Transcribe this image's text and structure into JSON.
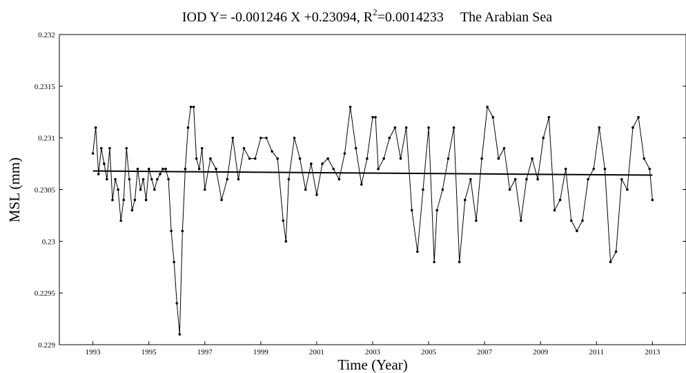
{
  "chart_data": {
    "type": "line",
    "title": {
      "prefix": "IOD Y= -0.001246 X +0.23094, R",
      "superscript": "2",
      "suffix": "=0.0014233",
      "region": "The Arabian Sea"
    },
    "xlabel": "Time (Year)",
    "ylabel": "MSL (mm)",
    "xlim": [
      1991.8,
      2014.2
    ],
    "ylim": [
      0.229,
      0.232
    ],
    "x_ticks": [
      1993,
      1995,
      1997,
      1999,
      2001,
      2003,
      2005,
      2007,
      2009,
      2011,
      2013
    ],
    "y_ticks": [
      {
        "value": 0.229,
        "label": "0.229"
      },
      {
        "value": 0.2295,
        "label": "0.2295"
      },
      {
        "value": 0.23,
        "label": "0.23"
      },
      {
        "value": 0.2305,
        "label": "0.2305"
      },
      {
        "value": 0.231,
        "label": "0.231"
      },
      {
        "value": 0.2315,
        "label": "0.2315"
      },
      {
        "value": 0.232,
        "label": "0.232"
      }
    ],
    "grid": false,
    "legend": "none",
    "line_color": "#000000",
    "marker": "dot",
    "series": [
      {
        "x": [
          1993.0,
          1993.1,
          1993.2,
          1993.3,
          1993.4,
          1993.5,
          1993.6,
          1993.7,
          1993.8,
          1993.9,
          1994.0,
          1994.1,
          1994.2,
          1994.3,
          1994.4,
          1994.5,
          1994.6,
          1994.7,
          1994.8,
          1994.9,
          1995.0,
          1995.1,
          1995.2,
          1995.3,
          1995.4,
          1995.5,
          1995.6,
          1995.7,
          1995.8,
          1995.9,
          1996.0,
          1996.1,
          1996.2,
          1996.3,
          1996.4,
          1996.5,
          1996.6,
          1996.7,
          1996.8,
          1996.9,
          1997.0,
          1997.2,
          1997.4,
          1997.6,
          1997.8,
          1998.0,
          1998.2,
          1998.4,
          1998.6,
          1998.8,
          1999.0,
          1999.2,
          1999.4,
          1999.6,
          1999.8,
          1999.9,
          2000.0,
          2000.2,
          2000.4,
          2000.6,
          2000.8,
          2001.0,
          2001.2,
          2001.4,
          2001.6,
          2001.8,
          2002.0,
          2002.2,
          2002.4,
          2002.6,
          2002.8,
          2003.0,
          2003.1,
          2003.2,
          2003.4,
          2003.6,
          2003.8,
          2004.0,
          2004.2,
          2004.4,
          2004.6,
          2004.8,
          2005.0,
          2005.2,
          2005.3,
          2005.5,
          2005.7,
          2005.9,
          2006.1,
          2006.3,
          2006.5,
          2006.7,
          2006.9,
          2007.1,
          2007.3,
          2007.5,
          2007.7,
          2007.9,
          2008.1,
          2008.3,
          2008.5,
          2008.7,
          2008.9,
          2009.1,
          2009.3,
          2009.5,
          2009.7,
          2009.9,
          2010.1,
          2010.3,
          2010.5,
          2010.7,
          2010.9,
          2011.1,
          2011.3,
          2011.5,
          2011.7,
          2011.9,
          2012.1,
          2012.3,
          2012.5,
          2012.7,
          2012.9,
          2013.0
        ],
        "y": [
          0.23085,
          0.2311,
          0.23065,
          0.2309,
          0.23075,
          0.2306,
          0.2309,
          0.2304,
          0.2306,
          0.2305,
          0.2302,
          0.2304,
          0.2309,
          0.2306,
          0.2303,
          0.2304,
          0.2307,
          0.2305,
          0.2306,
          0.2304,
          0.2307,
          0.2306,
          0.2305,
          0.2306,
          0.23065,
          0.2307,
          0.2307,
          0.2306,
          0.2301,
          0.2298,
          0.2294,
          0.2291,
          0.2301,
          0.2307,
          0.2311,
          0.2313,
          0.2313,
          0.2308,
          0.2307,
          0.2309,
          0.2305,
          0.2308,
          0.2307,
          0.2304,
          0.2306,
          0.231,
          0.2306,
          0.2309,
          0.2308,
          0.2308,
          0.231,
          0.231,
          0.23087,
          0.2308,
          0.2302,
          0.23,
          0.2306,
          0.231,
          0.2308,
          0.2305,
          0.23075,
          0.23045,
          0.23075,
          0.2308,
          0.2307,
          0.2306,
          0.23085,
          0.2313,
          0.2309,
          0.23055,
          0.2308,
          0.2312,
          0.2312,
          0.2307,
          0.2308,
          0.231,
          0.2311,
          0.2308,
          0.2311,
          0.2303,
          0.2299,
          0.2305,
          0.2311,
          0.2298,
          0.2303,
          0.2305,
          0.2308,
          0.2311,
          0.2298,
          0.2304,
          0.2306,
          0.2302,
          0.2308,
          0.2313,
          0.2312,
          0.2308,
          0.2309,
          0.2305,
          0.2306,
          0.2302,
          0.2306,
          0.2308,
          0.2306,
          0.231,
          0.2312,
          0.2303,
          0.2304,
          0.2307,
          0.2302,
          0.2301,
          0.2302,
          0.2306,
          0.2307,
          0.2311,
          0.2307,
          0.2298,
          0.2299,
          0.2306,
          0.2305,
          0.2311,
          0.2312,
          0.2308,
          0.2307,
          0.2304
        ]
      }
    ],
    "trend_line": {
      "x": [
        1993,
        2013
      ],
      "y": [
        0.23068,
        0.23064
      ]
    }
  }
}
